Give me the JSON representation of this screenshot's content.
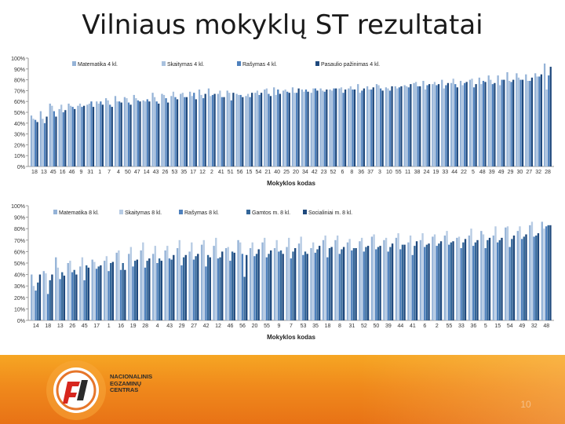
{
  "slide": {
    "title": "Vilniaus mokyklų ST rezultatai",
    "page_number": "10"
  },
  "logo": {
    "lines": [
      "NACIONALINIS",
      "EGZAMINŲ",
      "CENTRAS"
    ]
  },
  "colors": {
    "footer": "#f08a1c",
    "series_top": [
      "#95b3d7",
      "#a9c1de",
      "#4f81bd",
      "#1f497d"
    ],
    "series_bottom": [
      "#95b3d7",
      "#b8cce4",
      "#4f81bd",
      "#336699",
      "#1f497d"
    ]
  },
  "chart_data": [
    {
      "type": "bar",
      "xlabel": "Mokyklos kodas",
      "ylabel": "",
      "ylim": [
        0,
        100
      ],
      "y_ticks": [
        "0%",
        "10%",
        "20%",
        "30%",
        "40%",
        "50%",
        "60%",
        "70%",
        "80%",
        "90%",
        "100%"
      ],
      "grid": false,
      "legend_placement": "top",
      "categories": [
        "18",
        "13",
        "45",
        "16",
        "46",
        "9",
        "31",
        "1",
        "7",
        "4",
        "50",
        "47",
        "14",
        "43",
        "26",
        "53",
        "35",
        "17",
        "12",
        "2",
        "41",
        "51",
        "56",
        "15",
        "54",
        "21",
        "40",
        "25",
        "20",
        "34",
        "42",
        "23",
        "52",
        "6",
        "8",
        "36",
        "37",
        "3",
        "10",
        "55",
        "11",
        "38",
        "24",
        "19",
        "33",
        "44",
        "22",
        "5",
        "48",
        "39",
        "49",
        "29",
        "30",
        "27",
        "32",
        "28"
      ],
      "series": [
        {
          "name": "Matematika 4 kl.",
          "values": [
            47,
            51,
            58,
            53,
            58,
            56,
            57,
            60,
            63,
            65,
            64,
            66,
            61,
            68,
            67,
            65,
            67,
            69,
            71,
            72,
            67,
            70,
            67,
            65,
            68,
            71,
            73,
            70,
            73,
            71,
            68,
            72,
            71,
            72,
            72,
            76,
            74,
            76,
            73,
            74,
            75,
            77,
            79,
            76,
            80,
            77,
            79,
            80,
            82,
            84,
            84,
            87,
            86,
            85,
            86,
            95
          ]
        },
        {
          "name": "Skaitymas 4 kl.",
          "values": [
            44,
            44,
            56,
            57,
            56,
            58,
            58,
            58,
            61,
            60,
            63,
            63,
            60,
            64,
            66,
            69,
            68,
            65,
            66,
            65,
            70,
            68,
            66,
            67,
            70,
            72,
            66,
            71,
            68,
            69,
            72,
            70,
            70,
            73,
            74,
            68,
            71,
            75,
            72,
            72,
            74,
            78,
            71,
            78,
            72,
            81,
            75,
            81,
            76,
            80,
            75,
            79,
            82,
            79,
            83,
            71
          ]
        },
        {
          "name": "Rašymas 4 kl.",
          "values": [
            43,
            40,
            51,
            50,
            55,
            55,
            60,
            60,
            57,
            60,
            59,
            61,
            62,
            60,
            63,
            64,
            64,
            68,
            63,
            66,
            64,
            61,
            66,
            64,
            66,
            67,
            71,
            69,
            68,
            71,
            72,
            69,
            72,
            68,
            71,
            70,
            71,
            72,
            70,
            73,
            73,
            74,
            75,
            75,
            75,
            76,
            77,
            73,
            79,
            76,
            80,
            78,
            80,
            79,
            83,
            84
          ]
        },
        {
          "name": "Pasaulio pažinimas 4 kl.",
          "values": [
            41,
            46,
            46,
            52,
            53,
            56,
            55,
            57,
            55,
            59,
            57,
            60,
            60,
            58,
            59,
            62,
            64,
            62,
            67,
            67,
            64,
            68,
            64,
            68,
            68,
            65,
            67,
            68,
            72,
            69,
            70,
            71,
            72,
            71,
            71,
            72,
            73,
            70,
            74,
            74,
            76,
            74,
            76,
            76,
            77,
            73,
            78,
            76,
            78,
            77,
            80,
            80,
            80,
            82,
            85,
            92
          ]
        }
      ]
    },
    {
      "type": "bar",
      "xlabel": "Mokyklos kodas",
      "ylabel": "",
      "ylim": [
        0,
        100
      ],
      "y_ticks": [
        "0%",
        "10%",
        "20%",
        "30%",
        "40%",
        "50%",
        "60%",
        "70%",
        "80%",
        "90%",
        "100%"
      ],
      "grid": false,
      "legend_placement": "top",
      "categories": [
        "14",
        "18",
        "13",
        "26",
        "45",
        "17",
        "1",
        "16",
        "19",
        "28",
        "4",
        "43",
        "29",
        "27",
        "42",
        "12",
        "46",
        "56",
        "20",
        "55",
        "9",
        "7",
        "53",
        "35",
        "18",
        "8",
        "31",
        "52",
        "50",
        "39",
        "44",
        "41",
        "6",
        "2",
        "55",
        "33",
        "36",
        "5",
        "15",
        "54",
        "49",
        "32",
        "48"
      ],
      "series": [
        {
          "name": "Matematika 8 kl.",
          "values": [
            40,
            43,
            55,
            50,
            47,
            53,
            52,
            59,
            58,
            61,
            58,
            61,
            63,
            60,
            66,
            65,
            63,
            70,
            63,
            68,
            63,
            64,
            67,
            63,
            70,
            70,
            68,
            69,
            73,
            70,
            72,
            68,
            70,
            73,
            74,
            72,
            74,
            78,
            74,
            81,
            78,
            83,
            86
          ]
        },
        {
          "name": "Skaitymas 8 kl.",
          "values": [
            30,
            41,
            46,
            52,
            55,
            51,
            56,
            61,
            64,
            68,
            65,
            65,
            70,
            68,
            70,
            72,
            64,
            68,
            68,
            72,
            70,
            72,
            73,
            68,
            74,
            74,
            71,
            72,
            75,
            72,
            76,
            74,
            76,
            75,
            78,
            73,
            80,
            75,
            82,
            82,
            82,
            86,
            80
          ]
        },
        {
          "name": "Rašymas 8 kl.",
          "values": [
            26,
            23,
            36,
            42,
            35,
            45,
            43,
            44,
            47,
            46,
            50,
            54,
            48,
            53,
            47,
            54,
            52,
            58,
            56,
            55,
            60,
            54,
            57,
            59,
            55,
            58,
            61,
            60,
            62,
            60,
            62,
            57,
            64,
            65,
            66,
            63,
            65,
            63,
            68,
            64,
            71,
            73,
            82
          ]
        },
        {
          "name": "Gamtos m. 8 kl.",
          "values": [
            33,
            35,
            42,
            44,
            48,
            47,
            50,
            50,
            52,
            52,
            54,
            53,
            55,
            56,
            57,
            55,
            60,
            38,
            58,
            58,
            61,
            60,
            60,
            62,
            63,
            62,
            63,
            64,
            64,
            64,
            66,
            65,
            66,
            67,
            68,
            68,
            68,
            70,
            70,
            71,
            73,
            74,
            83
          ]
        },
        {
          "name": "Socialiniai m. 8 kl.",
          "values": [
            40,
            40,
            39,
            40,
            46,
            48,
            51,
            44,
            53,
            54,
            52,
            57,
            57,
            58,
            55,
            60,
            59,
            57,
            62,
            61,
            58,
            63,
            58,
            65,
            64,
            64,
            63,
            65,
            65,
            67,
            66,
            69,
            67,
            69,
            69,
            71,
            70,
            72,
            72,
            74,
            75,
            76,
            83
          ]
        }
      ]
    }
  ]
}
